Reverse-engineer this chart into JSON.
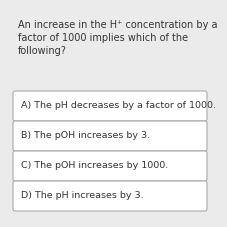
{
  "question_lines": [
    "An increase in the H⁺ concentration by a",
    "factor of 1000 implies which of the",
    "following?"
  ],
  "options": [
    "A) The pH decreases by a factor of 1000.",
    "B) The pOH increases by 3.",
    "C) The pOH increases by 1000.",
    "D) The pH increases by 3."
  ],
  "bg_color": "#ebebeb",
  "box_color": "#ffffff",
  "box_edge_color": "#aaaaaa",
  "text_color": "#333333",
  "question_fontsize": 7.0,
  "option_fontsize": 6.8
}
